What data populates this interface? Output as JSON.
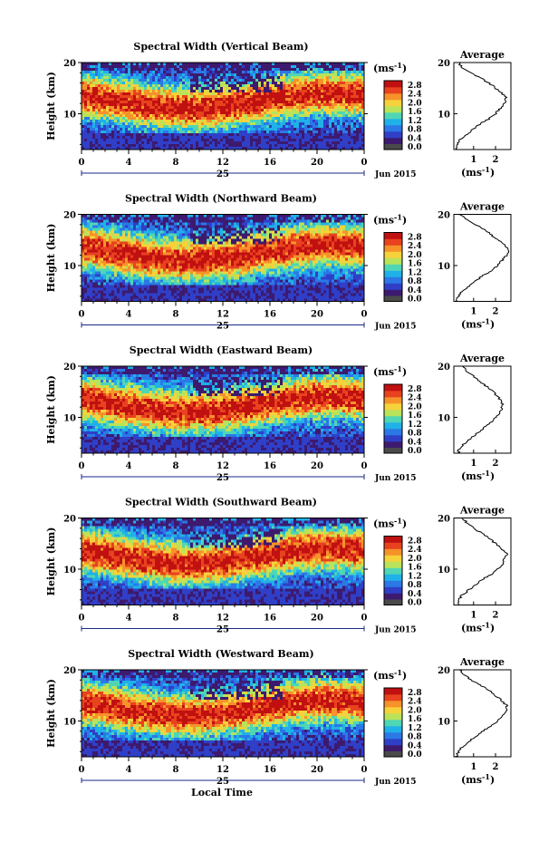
{
  "chart_data": [
    {
      "type": "heatmap",
      "title": "Spectral Width (Vertical Beam)",
      "ylabel": "Height (km)",
      "y_ticks": [
        "20",
        "10"
      ],
      "x_ticks": [
        "0",
        "4",
        "8",
        "12",
        "16",
        "20",
        "0"
      ],
      "day_label": "25",
      "date_label": "Jun 2015",
      "cbar_unit": "(ms-1)",
      "cbar_ticks": [
        "2.8",
        "2.4",
        "2.0",
        "1.6",
        "1.2",
        "0.8",
        "0.4",
        "0.0"
      ],
      "avg": {
        "title": "Average",
        "unit": "(ms-1)",
        "x_ticks": [
          "1",
          "2"
        ],
        "y_ticks": [
          "20",
          "10"
        ],
        "x": [
          0.2,
          0.25,
          0.4,
          0.7,
          1.0,
          1.3,
          1.7,
          2.0,
          2.2,
          2.4,
          2.5,
          2.3,
          2.0,
          1.7,
          1.3,
          0.9,
          0.5,
          0.3
        ],
        "y": [
          3,
          4,
          5,
          6,
          7,
          8,
          9,
          10,
          11,
          12,
          13,
          14,
          15,
          16,
          17,
          18,
          19,
          20
        ]
      }
    },
    {
      "type": "heatmap",
      "title": "Spectral Width (Northward Beam)",
      "ylabel": "Height (km)",
      "y_ticks": [
        "20",
        "10"
      ],
      "x_ticks": [
        "0",
        "4",
        "8",
        "12",
        "16",
        "20",
        "0"
      ],
      "day_label": "25",
      "date_label": "Jun 2015",
      "cbar_unit": "(ms-1)",
      "cbar_ticks": [
        "2.8",
        "2.4",
        "2.0",
        "1.6",
        "1.2",
        "0.8",
        "0.4",
        "0.0"
      ],
      "avg": {
        "title": "Average",
        "unit": "(ms-1)",
        "x_ticks": [
          "1",
          "2"
        ],
        "y_ticks": [
          "20",
          "10"
        ],
        "x": [
          0.2,
          0.3,
          0.5,
          0.8,
          1.1,
          1.4,
          1.8,
          2.1,
          2.3,
          2.5,
          2.6,
          2.4,
          2.1,
          1.8,
          1.5,
          1.1,
          0.7,
          0.4
        ],
        "y": [
          3,
          4,
          5,
          6,
          7,
          8,
          9,
          10,
          11,
          12,
          13,
          14,
          15,
          16,
          17,
          18,
          19,
          20
        ]
      }
    },
    {
      "type": "heatmap",
      "title": "Spectral Width (Eastward Beam)",
      "ylabel": "Height (km)",
      "y_ticks": [
        "20",
        "10"
      ],
      "x_ticks": [
        "0",
        "4",
        "8",
        "12",
        "16",
        "20",
        "0"
      ],
      "day_label": "25",
      "date_label": "Jun 2015",
      "cbar_unit": "(ms-1)",
      "cbar_ticks": [
        "2.8",
        "2.4",
        "2.0",
        "1.6",
        "1.2",
        "0.8",
        "0.4",
        "0.0"
      ],
      "avg": {
        "title": "Average",
        "unit": "(ms-1)",
        "x_ticks": [
          "1",
          "2"
        ],
        "y_ticks": [
          "20",
          "10"
        ],
        "x": [
          0.3,
          0.35,
          0.6,
          0.9,
          1.2,
          1.5,
          1.8,
          2.0,
          2.2,
          2.3,
          2.3,
          2.1,
          1.9,
          1.6,
          1.3,
          1.0,
          0.7,
          0.5
        ],
        "y": [
          3,
          4,
          5,
          6,
          7,
          8,
          9,
          10,
          11,
          12,
          13,
          14,
          15,
          16,
          17,
          18,
          19,
          20
        ]
      }
    },
    {
      "type": "heatmap",
      "title": "Spectral Width (Southward Beam)",
      "ylabel": "Height (km)",
      "y_ticks": [
        "20",
        "10"
      ],
      "x_ticks": [
        "0",
        "4",
        "8",
        "12",
        "16",
        "20",
        "0"
      ],
      "day_label": "25",
      "date_label": "Jun 2015",
      "cbar_unit": "(ms-1)",
      "cbar_ticks": [
        "2.8",
        "2.4",
        "2.0",
        "1.6",
        "1.2",
        "0.8",
        "0.4",
        "0.0"
      ],
      "avg": {
        "title": "Average",
        "unit": "(ms-1)",
        "x_ticks": [
          "1",
          "2"
        ],
        "y_ticks": [
          "20",
          "10"
        ],
        "x": [
          0.3,
          0.3,
          0.5,
          0.8,
          1.1,
          1.4,
          1.8,
          2.1,
          2.3,
          2.4,
          2.5,
          2.3,
          2.0,
          1.7,
          1.4,
          1.0,
          0.7,
          0.5
        ],
        "y": [
          3,
          4,
          5,
          6,
          7,
          8,
          9,
          10,
          11,
          12,
          13,
          14,
          15,
          16,
          17,
          18,
          19,
          20
        ]
      }
    },
    {
      "type": "heatmap",
      "title": "Spectral Width (Westward Beam)",
      "ylabel": "Height (km)",
      "y_ticks": [
        "20",
        "10"
      ],
      "x_ticks": [
        "0",
        "4",
        "8",
        "12",
        "16",
        "20",
        "0"
      ],
      "day_label": "25",
      "date_label": "Jun 2015",
      "cbar_unit": "(ms-1)",
      "cbar_ticks": [
        "2.8",
        "2.4",
        "2.0",
        "1.6",
        "1.2",
        "0.8",
        "0.4",
        "0.0"
      ],
      "avg": {
        "title": "Average",
        "unit": "(ms-1)",
        "x_ticks": [
          "1",
          "2"
        ],
        "y_ticks": [
          "20",
          "10"
        ],
        "x": [
          0.2,
          0.3,
          0.5,
          0.8,
          1.1,
          1.4,
          1.8,
          2.1,
          2.3,
          2.5,
          2.5,
          2.3,
          2.0,
          1.7,
          1.3,
          0.9,
          0.6,
          0.4
        ],
        "y": [
          3,
          4,
          5,
          6,
          7,
          8,
          9,
          10,
          11,
          12,
          13,
          14,
          15,
          16,
          17,
          18,
          19,
          20
        ]
      }
    }
  ],
  "footer": {
    "xlabel": "Local Time"
  },
  "colors": {
    "colormap": [
      "#3d1a6e",
      "#2f3fc8",
      "#2b78e6",
      "#1fb1e8",
      "#4fd6b5",
      "#b8e35a",
      "#f6d23a",
      "#f6922a",
      "#e8421f",
      "#c01010"
    ]
  }
}
